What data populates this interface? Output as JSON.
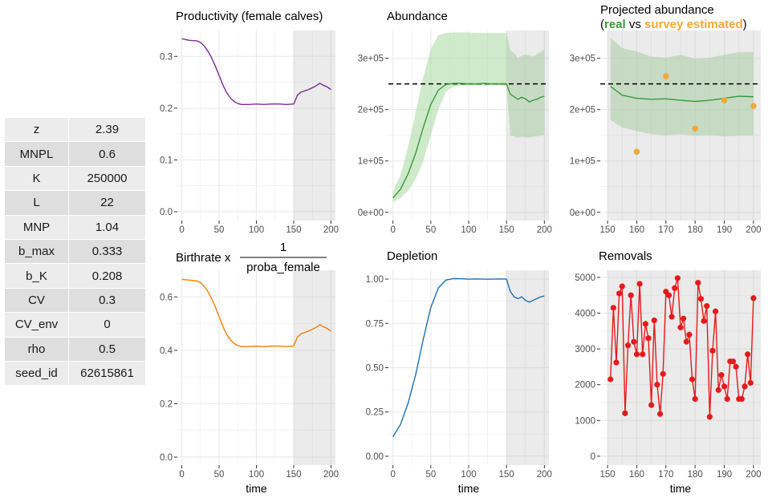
{
  "params_table": {
    "rows": [
      {
        "key": "z",
        "value": "2.39"
      },
      {
        "key": "MNPL",
        "value": "0.6"
      },
      {
        "key": "K",
        "value": "250000"
      },
      {
        "key": "L",
        "value": "22"
      },
      {
        "key": "MNP",
        "value": "1.04"
      },
      {
        "key": "b_max",
        "value": "0.333"
      },
      {
        "key": "b_K",
        "value": "0.208"
      },
      {
        "key": "CV",
        "value": "0.3"
      },
      {
        "key": "CV_env",
        "value": "0"
      },
      {
        "key": "rho",
        "value": "0.5"
      },
      {
        "key": "seed_id",
        "value": "62615861"
      }
    ]
  },
  "colors": {
    "purple": "#7b2d8e",
    "orange": "#f07f0c",
    "green": "#3a9a3a",
    "green_band": "#a7d8a0",
    "blue": "#1f6eb0",
    "red": "#e41a1c",
    "survey": "#f0a838",
    "shade": "#b0b0b0",
    "grid": "#ebebeb"
  },
  "chart_data": [
    {
      "id": "productivity",
      "type": "line",
      "title": "Productivity (female calves)",
      "xlabel": "",
      "ylabel": "",
      "xlim": [
        -6,
        206
      ],
      "ylim": [
        -0.017,
        0.35
      ],
      "xticks": [
        0,
        50,
        100,
        150,
        200
      ],
      "xtick_labels": [
        "0",
        "50",
        "100",
        "150",
        "200"
      ],
      "yticks": [
        0,
        0.1,
        0.2,
        0.3
      ],
      "ytick_labels": [
        "0.0",
        "0.1",
        "0.2",
        "0.3"
      ],
      "shade": [
        150,
        206
      ],
      "color_key": "purple",
      "x": [
        0,
        10,
        20,
        25,
        30,
        35,
        40,
        45,
        50,
        55,
        60,
        65,
        70,
        75,
        80,
        90,
        100,
        110,
        120,
        130,
        140,
        150,
        155,
        160,
        170,
        180,
        185,
        190,
        195,
        200
      ],
      "y": [
        0.334,
        0.331,
        0.33,
        0.327,
        0.32,
        0.31,
        0.297,
        0.281,
        0.263,
        0.245,
        0.23,
        0.22,
        0.213,
        0.209,
        0.207,
        0.207,
        0.208,
        0.207,
        0.208,
        0.208,
        0.207,
        0.208,
        0.225,
        0.231,
        0.236,
        0.243,
        0.248,
        0.244,
        0.241,
        0.236
      ]
    },
    {
      "id": "abundance",
      "type": "line",
      "title": "Abundance",
      "xlabel": "",
      "ylabel": "",
      "xlim": [
        -6,
        206
      ],
      "ylim": [
        -16000,
        354000
      ],
      "xticks": [
        0,
        50,
        100,
        150,
        200
      ],
      "xtick_labels": [
        "0",
        "50",
        "100",
        "150",
        "200"
      ],
      "yticks": [
        0,
        100000,
        200000,
        300000
      ],
      "ytick_labels": [
        "0e+00",
        "1e+05",
        "2e+05",
        "3e+05"
      ],
      "shade": [
        150,
        206
      ],
      "reference_line": 250000,
      "color_key": "green",
      "x": [
        0,
        10,
        20,
        30,
        40,
        50,
        60,
        70,
        80,
        90,
        100,
        110,
        120,
        130,
        140,
        150,
        155,
        160,
        165,
        170,
        175,
        180,
        185,
        190,
        195,
        200
      ],
      "y": [
        28000,
        45000,
        75000,
        115000,
        165000,
        210000,
        238000,
        249000,
        251000,
        251000,
        250000,
        250000,
        251000,
        250000,
        250000,
        250000,
        230000,
        225000,
        220000,
        224000,
        221000,
        215000,
        218000,
        220000,
        224000,
        226000
      ],
      "band_lower": [
        20000,
        28000,
        42000,
        65000,
        100000,
        150000,
        200000,
        235000,
        245000,
        247000,
        247000,
        247000,
        247000,
        247000,
        247000,
        247000,
        150000,
        148000,
        145000,
        147000,
        146000,
        145000,
        147000,
        148000,
        149000,
        150000
      ],
      "band_upper": [
        40000,
        72000,
        128000,
        195000,
        262000,
        318000,
        345000,
        349000,
        350000,
        350000,
        350000,
        349000,
        349000,
        349000,
        349000,
        349000,
        315000,
        310000,
        300000,
        305000,
        308000,
        306000,
        303000,
        308000,
        312000,
        318000
      ]
    },
    {
      "id": "projected_abundance",
      "type": "line",
      "title": "Projected abundance",
      "subtitle_parts": [
        "(",
        "real",
        " vs ",
        "survey estimated",
        ")"
      ],
      "xlabel": "",
      "ylabel": "",
      "xlim": [
        147.5,
        202.5
      ],
      "ylim": [
        -16000,
        354000
      ],
      "xticks": [
        150,
        160,
        170,
        180,
        190,
        200
      ],
      "xtick_labels": [
        "150",
        "160",
        "170",
        "180",
        "190",
        "200"
      ],
      "yticks": [
        0,
        100000,
        200000,
        300000
      ],
      "ytick_labels": [
        "0e+00",
        "1e+05",
        "2e+05",
        "3e+05"
      ],
      "shade": [
        150,
        202.5
      ],
      "reference_line": 250000,
      "color_key": "green",
      "x": [
        151,
        155,
        160,
        165,
        170,
        175,
        180,
        185,
        190,
        195,
        200
      ],
      "y": [
        245000,
        228000,
        222000,
        220000,
        221000,
        218000,
        216000,
        218000,
        222000,
        226000,
        225000
      ],
      "band_lower": [
        180000,
        165000,
        158000,
        152000,
        150000,
        152000,
        149000,
        150000,
        148000,
        149000,
        150000
      ],
      "band_upper": [
        340000,
        320000,
        313000,
        303000,
        301000,
        307000,
        299000,
        301000,
        307000,
        312000,
        312000
      ],
      "survey_points": [
        {
          "x": 160,
          "y": 118000
        },
        {
          "x": 170,
          "y": 265000
        },
        {
          "x": 180,
          "y": 163000
        },
        {
          "x": 190,
          "y": 218000
        },
        {
          "x": 200,
          "y": 207000
        }
      ]
    },
    {
      "id": "birthrate",
      "type": "line",
      "title": "Birthrate x",
      "title_fraction": {
        "numerator": "1",
        "denominator": "proba_female"
      },
      "xlabel": "time",
      "ylabel": "",
      "xlim": [
        -6,
        206
      ],
      "ylim": [
        -0.03,
        0.7
      ],
      "xticks": [
        0,
        50,
        100,
        150,
        200
      ],
      "xtick_labels": [
        "0",
        "50",
        "100",
        "150",
        "200"
      ],
      "yticks": [
        0,
        0.2,
        0.4,
        0.6
      ],
      "ytick_labels": [
        "0.0",
        "0.2",
        "0.4",
        "0.6"
      ],
      "shade": [
        150,
        206
      ],
      "color_key": "orange",
      "x": [
        0,
        10,
        20,
        25,
        30,
        35,
        40,
        45,
        50,
        55,
        60,
        65,
        70,
        75,
        80,
        90,
        100,
        110,
        120,
        130,
        140,
        150,
        155,
        160,
        170,
        180,
        185,
        190,
        195,
        200
      ],
      "y": [
        0.666,
        0.663,
        0.66,
        0.654,
        0.64,
        0.62,
        0.594,
        0.562,
        0.526,
        0.49,
        0.46,
        0.44,
        0.426,
        0.418,
        0.414,
        0.414,
        0.416,
        0.414,
        0.416,
        0.416,
        0.414,
        0.416,
        0.45,
        0.462,
        0.472,
        0.486,
        0.496,
        0.488,
        0.482,
        0.472
      ]
    },
    {
      "id": "depletion",
      "type": "line",
      "title": "Depletion",
      "xlabel": "time",
      "ylabel": "",
      "xlim": [
        -6,
        206
      ],
      "ylim": [
        -0.05,
        1.05
      ],
      "xticks": [
        0,
        50,
        100,
        150,
        200
      ],
      "xtick_labels": [
        "0",
        "50",
        "100",
        "150",
        "200"
      ],
      "yticks": [
        0,
        0.25,
        0.5,
        0.75,
        1.0
      ],
      "ytick_labels": [
        "0.00",
        "0.25",
        "0.50",
        "0.75",
        "1.00"
      ],
      "shade": [
        150,
        206
      ],
      "color_key": "blue",
      "x": [
        0,
        10,
        20,
        30,
        40,
        50,
        60,
        70,
        80,
        90,
        100,
        110,
        120,
        130,
        140,
        150,
        155,
        160,
        165,
        170,
        175,
        180,
        185,
        190,
        195,
        200
      ],
      "y": [
        0.11,
        0.18,
        0.3,
        0.46,
        0.66,
        0.84,
        0.95,
        0.995,
        1.003,
        1.002,
        1.0,
        1.001,
        1.0,
        1.0,
        1.001,
        1.0,
        0.93,
        0.9,
        0.89,
        0.9,
        0.88,
        0.87,
        0.88,
        0.89,
        0.9,
        0.905
      ]
    },
    {
      "id": "removals",
      "type": "line",
      "title": "Removals",
      "xlabel": "time",
      "ylabel": "",
      "xlim": [
        147.5,
        202.5
      ],
      "ylim": [
        -250,
        5200
      ],
      "xticks": [
        150,
        160,
        170,
        180,
        190,
        200
      ],
      "xtick_labels": [
        "150",
        "160",
        "170",
        "180",
        "190",
        "200"
      ],
      "yticks": [
        0,
        1000,
        2000,
        3000,
        4000,
        5000
      ],
      "ytick_labels": [
        "0",
        "1000",
        "2000",
        "3000",
        "4000",
        "5000"
      ],
      "shade": [
        150,
        202.5
      ],
      "color_key": "red",
      "markers": true,
      "x": [
        151,
        152,
        153,
        154,
        155,
        156,
        157,
        158,
        159,
        160,
        161,
        162,
        163,
        164,
        165,
        166,
        167,
        168,
        169,
        170,
        171,
        172,
        173,
        174,
        175,
        176,
        177,
        178,
        179,
        180,
        181,
        182,
        183,
        184,
        185,
        186,
        187,
        188,
        189,
        190,
        191,
        192,
        193,
        194,
        195,
        196,
        197,
        198,
        199,
        200
      ],
      "y": [
        2150,
        4150,
        2620,
        4550,
        4750,
        1200,
        3100,
        4500,
        3200,
        2850,
        4820,
        2850,
        3700,
        3300,
        1430,
        3800,
        2000,
        1180,
        2300,
        4600,
        4500,
        3900,
        4700,
        4980,
        3600,
        3850,
        3200,
        3400,
        2150,
        1600,
        4850,
        4400,
        3780,
        4200,
        1100,
        2950,
        4050,
        1850,
        2270,
        1950,
        1600,
        2650,
        2650,
        2500,
        1600,
        1600,
        1950,
        2850,
        2050,
        4420
      ]
    }
  ]
}
